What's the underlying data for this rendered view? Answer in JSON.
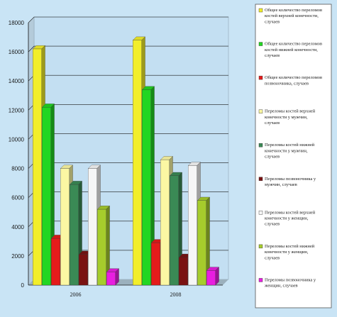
{
  "chart_data": {
    "type": "bar",
    "title": "",
    "xlabel": "",
    "ylabel": "",
    "ylim": [
      0,
      18000
    ],
    "yticks": [
      0,
      2000,
      4000,
      6000,
      8000,
      10000,
      12000,
      14000,
      16000,
      18000
    ],
    "grid": true,
    "legend_position": "right",
    "categories": [
      "2006",
      "2008"
    ],
    "series": [
      {
        "name": "Общее количество переломов костей верхней конечности, случаев",
        "color": "#f2ee2a",
        "values": [
          16200,
          16800
        ]
      },
      {
        "name": "Общее количество переломов костей нижней конечности, случаев",
        "color": "#22d622",
        "values": [
          12200,
          13400
        ]
      },
      {
        "name": "Общее количество переломов позвоночника, случаев",
        "color": "#e41b1b",
        "values": [
          3200,
          2900
        ]
      },
      {
        "name": "Переломы костей верхней конечности у мужчин, случаев",
        "color": "#fbf7a3",
        "values": [
          8000,
          8600
        ]
      },
      {
        "name": "Переломы костей нижней конечности у мужчин, случаев",
        "color": "#3a8a55",
        "values": [
          6900,
          7500
        ]
      },
      {
        "name": "Переломы позвоночника у мужчин, случаев",
        "color": "#7a1212",
        "values": [
          2100,
          1900
        ]
      },
      {
        "name": "Переломы костей верхней конечности у женщин, случаев",
        "color": "#f6f6f6",
        "values": [
          8000,
          8200
        ]
      },
      {
        "name": "Переломы костей нижней конечности у женщин, случаев",
        "color": "#a6cc2c",
        "values": [
          5200,
          5800
        ]
      },
      {
        "name": "Переломы позвоночника у женщин, случаев",
        "color": "#e81ee0",
        "values": [
          900,
          1000
        ]
      }
    ]
  }
}
